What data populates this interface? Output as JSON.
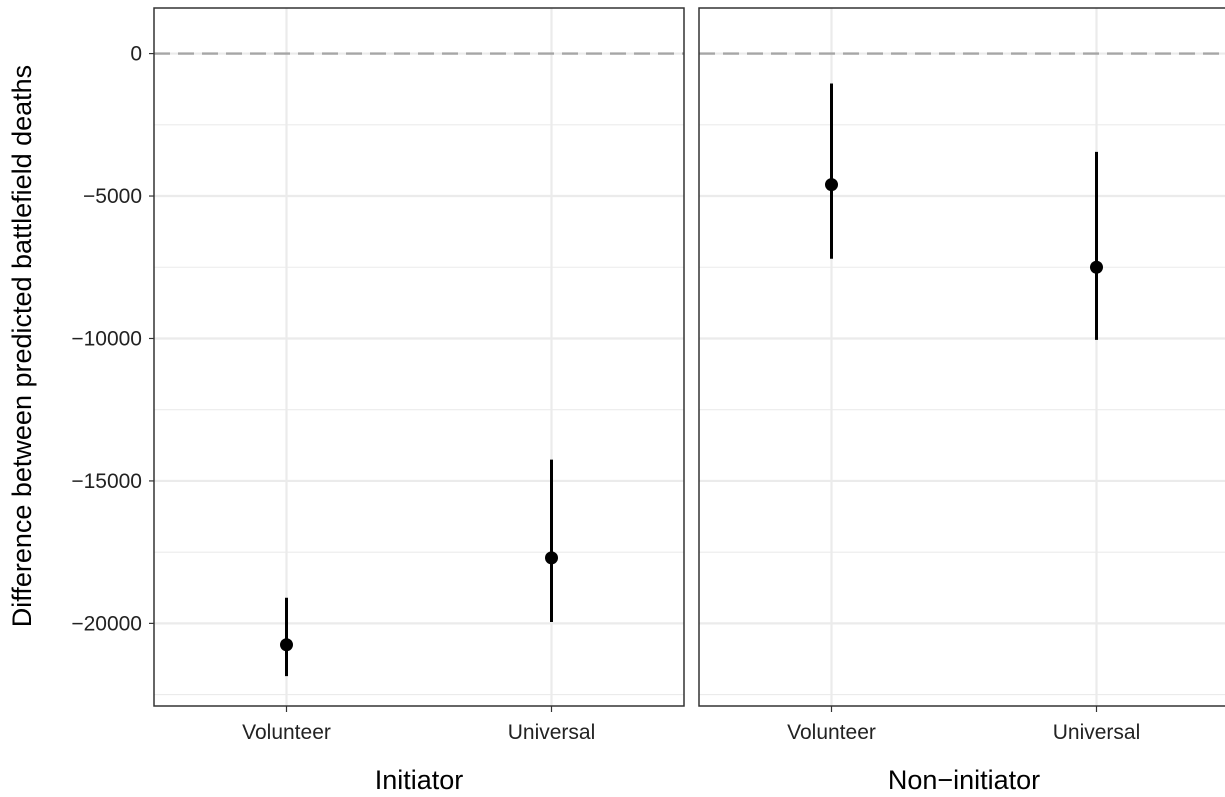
{
  "chart_data": [
    {
      "type": "scatter",
      "panel": "Initiator",
      "xlabel": "Initiator",
      "ylabel": "Difference between predicted battlefield deaths",
      "categories": [
        "Volunteer",
        "Universal"
      ],
      "points": [
        {
          "category": "Volunteer",
          "y": -20750,
          "ymin": -21850,
          "ymax": -19100
        },
        {
          "category": "Universal",
          "y": -17700,
          "ymin": -19950,
          "ymax": -14250
        }
      ],
      "yticks": [
        0,
        -5000,
        -10000,
        -15000,
        -20000
      ],
      "ytick_labels": [
        "0",
        "−5000",
        "−10000",
        "−15000",
        "−20000"
      ],
      "ylim": [
        -22900,
        1600
      ],
      "reference_line": 0,
      "grid": true
    },
    {
      "type": "scatter",
      "panel": "Non−initiator",
      "xlabel": "Non−initiator",
      "categories": [
        "Volunteer",
        "Universal"
      ],
      "points": [
        {
          "category": "Volunteer",
          "y": -4600,
          "ymin": -7200,
          "ymax": -1050
        },
        {
          "category": "Universal",
          "y": -7500,
          "ymin": -10050,
          "ymax": -3450
        }
      ],
      "ylim": [
        -22900,
        1600
      ],
      "reference_line": 0,
      "grid": true
    }
  ],
  "colors": {
    "point": "#000000",
    "grid": "#ebebeb",
    "reference": "#a6a6a6",
    "panel_border": "#333333",
    "text": "#222222"
  }
}
